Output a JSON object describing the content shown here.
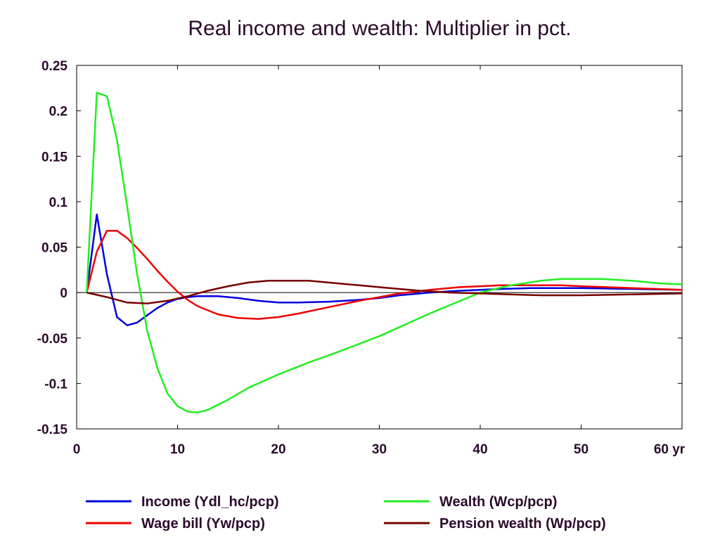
{
  "chart_data": {
    "type": "line",
    "title": "Real income and wealth: Multiplier in pct.",
    "xlabel": "",
    "ylabel": "",
    "x_unit_suffix": "yr",
    "xlim": [
      0,
      60
    ],
    "ylim": [
      -0.15,
      0.25
    ],
    "x_ticks": [
      0,
      10,
      20,
      30,
      40,
      50,
      60
    ],
    "x_tick_labels": [
      "0",
      "10",
      "20",
      "30",
      "40",
      "50",
      "60 yr"
    ],
    "y_ticks": [
      0.25,
      0.2,
      0.15,
      0.1,
      0.05,
      0,
      -0.05,
      -0.1,
      -0.15
    ],
    "y_tick_labels": [
      "0.25",
      "0.2",
      "0.15",
      "0.1",
      "0.05",
      "0",
      "-0.05",
      "-0.1",
      "-0.15"
    ],
    "grid": false,
    "zero_line": true,
    "legend_position": "bottom",
    "series": [
      {
        "name": "Income (Ydl_hc/pcp)",
        "color": "#0000dd",
        "x": [
          1,
          2,
          3,
          4,
          5,
          6,
          7,
          8,
          9,
          10,
          11,
          12,
          14,
          16,
          18,
          20,
          22,
          25,
          28,
          30,
          32,
          35,
          38,
          40,
          42,
          45,
          50,
          55,
          60
        ],
        "y": [
          0,
          0.086,
          0.02,
          -0.027,
          -0.036,
          -0.033,
          -0.025,
          -0.017,
          -0.011,
          -0.007,
          -0.005,
          -0.004,
          -0.004,
          -0.006,
          -0.009,
          -0.011,
          -0.011,
          -0.01,
          -0.008,
          -0.006,
          -0.003,
          0.0,
          0.002,
          0.003,
          0.004,
          0.005,
          0.005,
          0.004,
          0.003
        ]
      },
      {
        "name": "Wage bill (Yw/pcp)",
        "color": "#ee0000",
        "x": [
          1,
          2,
          3,
          4,
          5,
          6,
          7,
          8,
          9,
          10,
          11,
          12,
          14,
          16,
          18,
          20,
          22,
          25,
          28,
          30,
          32,
          35,
          38,
          40,
          42,
          45,
          48,
          50,
          55,
          60
        ],
        "y": [
          0,
          0.045,
          0.068,
          0.068,
          0.06,
          0.049,
          0.037,
          0.024,
          0.012,
          0.001,
          -0.008,
          -0.015,
          -0.024,
          -0.028,
          -0.029,
          -0.027,
          -0.023,
          -0.016,
          -0.009,
          -0.005,
          -0.001,
          0.003,
          0.006,
          0.007,
          0.008,
          0.008,
          0.008,
          0.007,
          0.005,
          0.003
        ]
      },
      {
        "name": "Wealth (Wcp/pcp)",
        "color": "#22ee22",
        "x": [
          1,
          2,
          3,
          4,
          5,
          6,
          7,
          8,
          9,
          10,
          11,
          12,
          13,
          15,
          17,
          20,
          23,
          26,
          30,
          35,
          40,
          43,
          46,
          48,
          50,
          52,
          55,
          58,
          60
        ],
        "y": [
          0,
          0.22,
          0.216,
          0.168,
          0.095,
          0.02,
          -0.042,
          -0.083,
          -0.111,
          -0.125,
          -0.131,
          -0.132,
          -0.129,
          -0.118,
          -0.105,
          -0.09,
          -0.077,
          -0.065,
          -0.048,
          -0.023,
          0.0,
          0.008,
          0.013,
          0.015,
          0.015,
          0.015,
          0.013,
          0.01,
          0.009
        ]
      },
      {
        "name": "Pension wealth (Wp/pcp)",
        "color": "#770000",
        "x": [
          1,
          3,
          5,
          7,
          9,
          11,
          13,
          15,
          17,
          19,
          21,
          23,
          25,
          28,
          31,
          34,
          37,
          40,
          43,
          46,
          50,
          55,
          60
        ],
        "y": [
          0,
          -0.005,
          -0.011,
          -0.012,
          -0.009,
          -0.004,
          0.002,
          0.007,
          0.011,
          0.013,
          0.013,
          0.013,
          0.011,
          0.008,
          0.005,
          0.002,
          0.0,
          -0.001,
          -0.002,
          -0.003,
          -0.003,
          -0.002,
          -0.001
        ]
      }
    ]
  }
}
